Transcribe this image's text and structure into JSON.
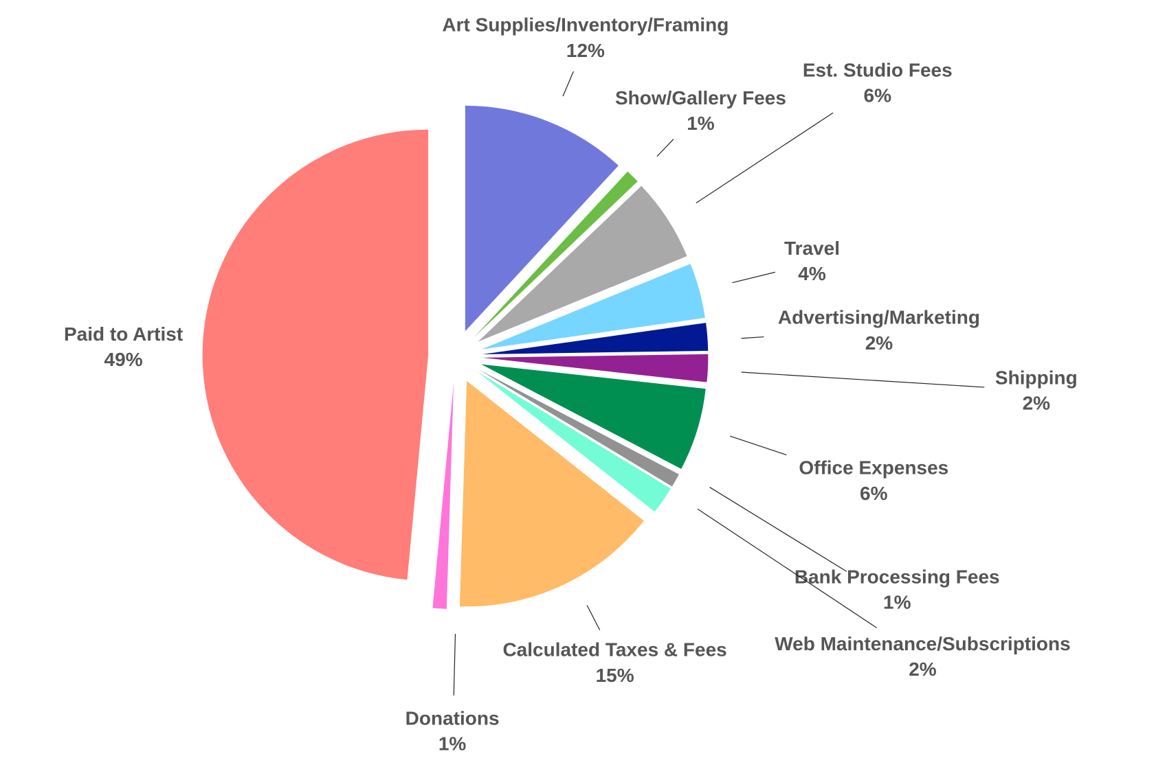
{
  "chart_data": {
    "type": "pie",
    "categories": [
      "Art Supplies/Inventory/Framing",
      "Show/Gallery Fees",
      "Est. Studio Fees",
      "Travel",
      "Advertising/Marketing",
      "Shipping",
      "Office Expenses",
      "Bank Processing Fees",
      "Web Maintenance/Subscriptions",
      "Calculated Taxes & Fees",
      "Donations",
      "Paid to Artist"
    ],
    "values": [
      12,
      1,
      6,
      4,
      2,
      2,
      6,
      1,
      2,
      15,
      1,
      49
    ],
    "value_labels": [
      "12%",
      "1%",
      "6%",
      "4%",
      "2%",
      "2%",
      "6%",
      "1%",
      "2%",
      "15%",
      "1%",
      "49%"
    ],
    "colors": [
      "#7079db",
      "#6cbd45",
      "#a9a9a9",
      "#76d6ff",
      "#011993",
      "#942193",
      "#008f51",
      "#929292",
      "#73fcd6",
      "#ffbb67",
      "#ff75d9",
      "#ff7e79"
    ]
  }
}
